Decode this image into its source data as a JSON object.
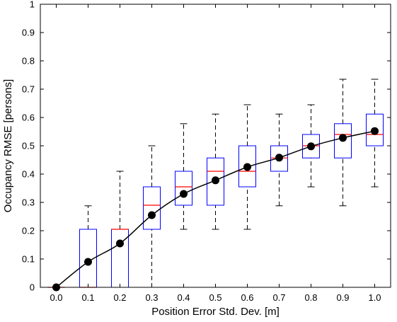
{
  "chart_data": {
    "type": "box",
    "xlabel": "Position Error Std. Dev. [m]",
    "ylabel": "Occupancy RMSE [persons]",
    "ylim": [
      0,
      1
    ],
    "yticks": [
      "0",
      "0.1",
      "0.2",
      "0.3",
      "0.4",
      "0.5",
      "0.6",
      "0.7",
      "0.8",
      "0.9",
      "1"
    ],
    "categories": [
      "0.0",
      "0.1",
      "0.2",
      "0.3",
      "0.4",
      "0.5",
      "0.6",
      "0.7",
      "0.8",
      "0.9",
      "1.0"
    ],
    "boxes": [
      {
        "min": 0,
        "q1": 0,
        "median": 0,
        "q3": 0,
        "max": 0
      },
      {
        "min": 0,
        "q1": 0,
        "median": 0,
        "q3": 0.205,
        "max": 0.288
      },
      {
        "min": 0,
        "q1": 0,
        "median": 0.205,
        "q3": 0.205,
        "max": 0.41
      },
      {
        "min": 0,
        "q1": 0.205,
        "median": 0.29,
        "q3": 0.355,
        "max": 0.5
      },
      {
        "min": 0.205,
        "q1": 0.29,
        "median": 0.355,
        "q3": 0.41,
        "max": 0.578
      },
      {
        "min": 0.205,
        "q1": 0.29,
        "median": 0.41,
        "q3": 0.457,
        "max": 0.612
      },
      {
        "min": 0.205,
        "q1": 0.355,
        "median": 0.41,
        "q3": 0.5,
        "max": 0.645
      },
      {
        "min": 0.288,
        "q1": 0.41,
        "median": 0.457,
        "q3": 0.5,
        "max": 0.612
      },
      {
        "min": 0.355,
        "q1": 0.457,
        "median": 0.5,
        "q3": 0.54,
        "max": 0.645
      },
      {
        "min": 0.288,
        "q1": 0.457,
        "median": 0.54,
        "q3": 0.578,
        "max": 0.735
      },
      {
        "min": 0.355,
        "q1": 0.5,
        "median": 0.54,
        "q3": 0.612,
        "max": 0.735
      }
    ],
    "mean_series": [
      0,
      0.09,
      0.155,
      0.255,
      0.33,
      0.378,
      0.425,
      0.458,
      0.498,
      0.528,
      0.552
    ],
    "colors": {
      "box": "#0000ff",
      "median": "#ff0000",
      "whisker": "#000000",
      "mean": "#000000"
    },
    "grid": false,
    "legend": "none"
  }
}
